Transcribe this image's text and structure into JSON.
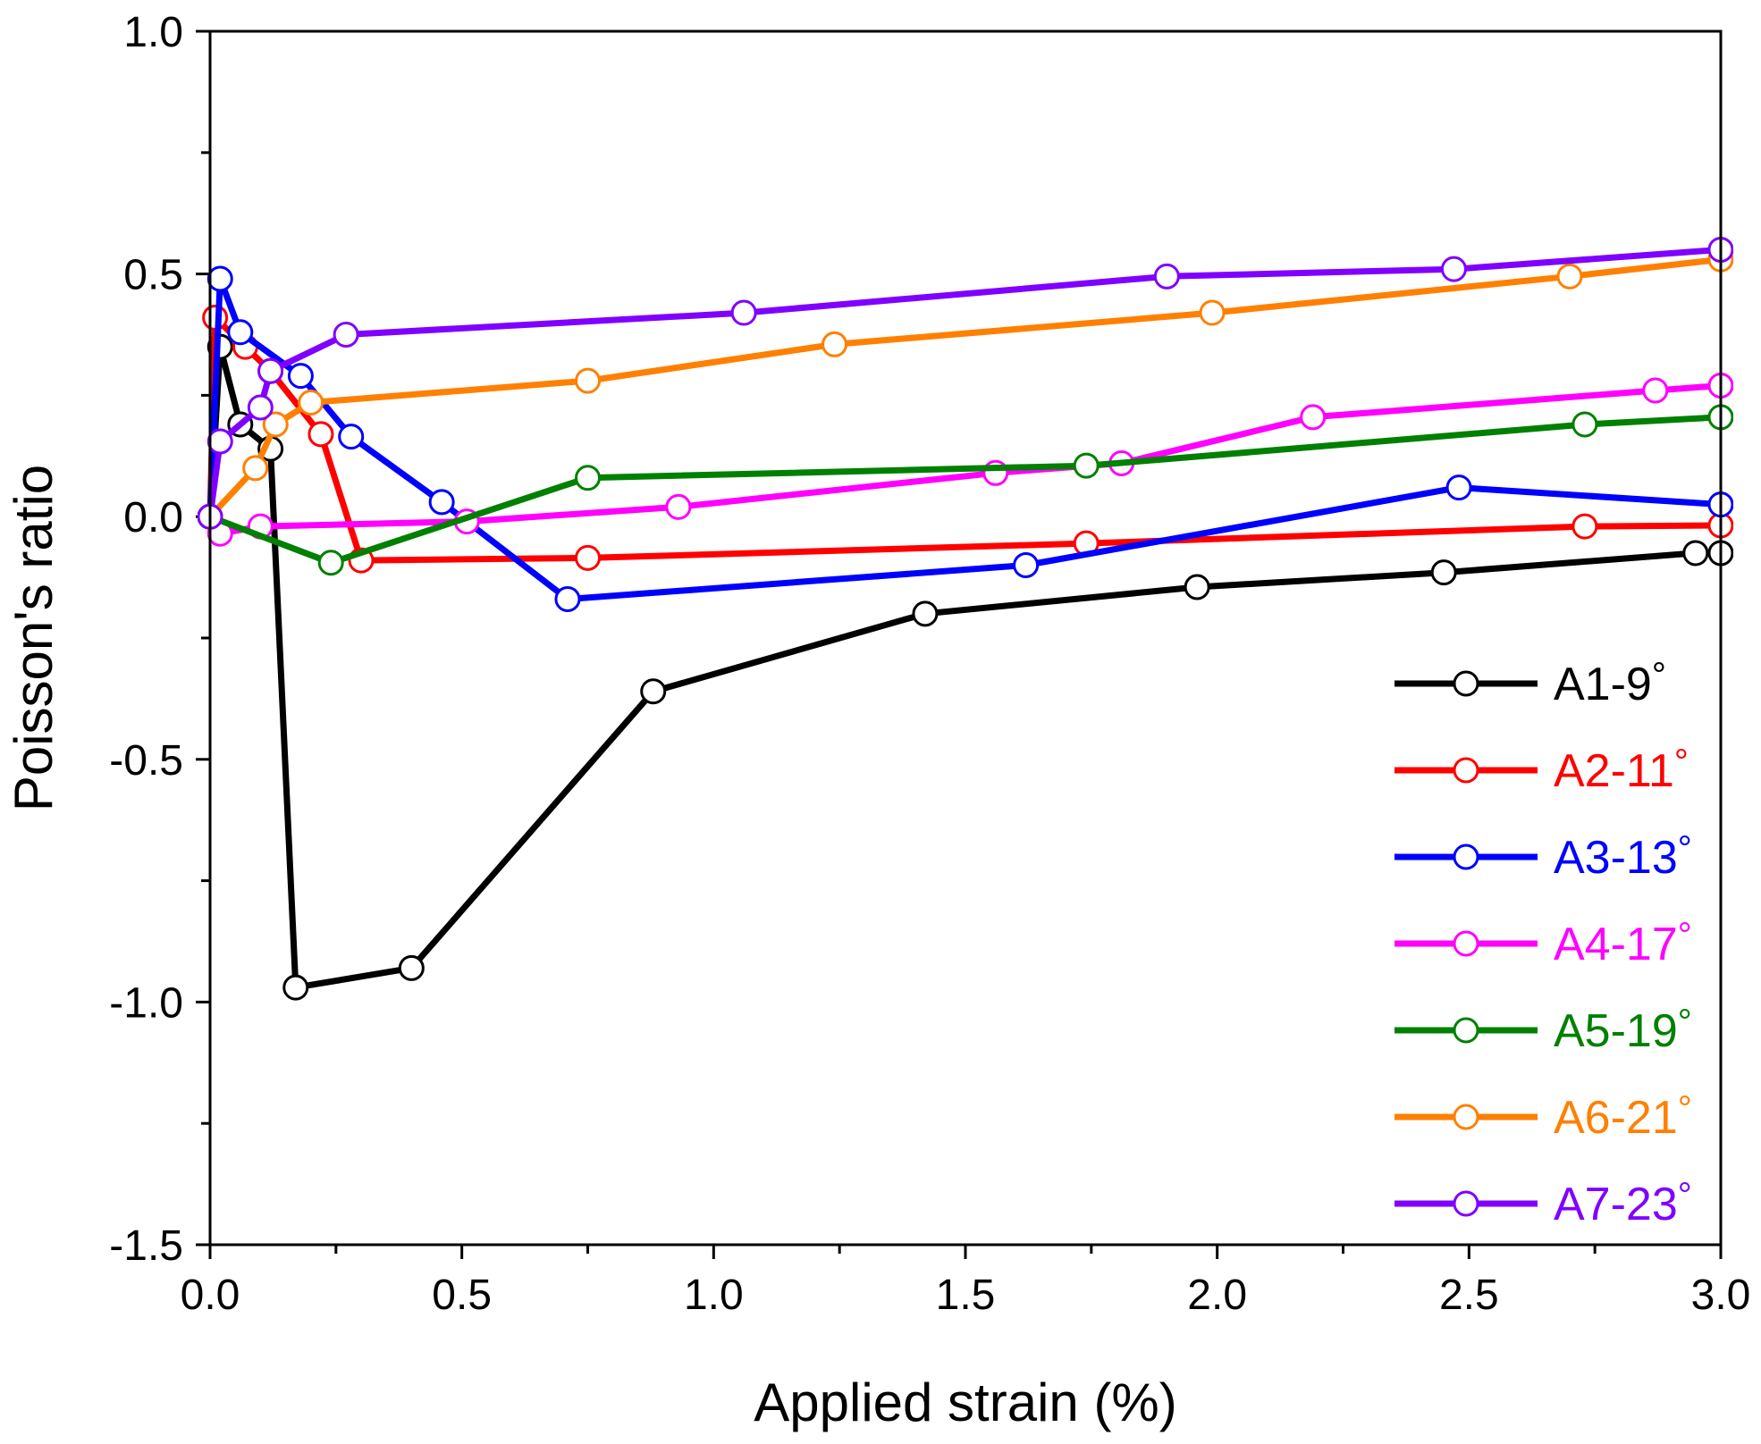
{
  "chart_data": {
    "type": "line",
    "title": "",
    "xlabel": "Applied strain (%)",
    "ylabel": "Poisson's ratio",
    "xlim": [
      0.0,
      3.0
    ],
    "ylim": [
      -1.5,
      1.0
    ],
    "x_ticks": [
      "0.0",
      "0.5",
      "1.0",
      "1.5",
      "2.0",
      "2.5",
      "3.0"
    ],
    "y_ticks": [
      "-1.5",
      "-1.0",
      "-0.5",
      "0.0",
      "0.5",
      "1.0"
    ],
    "legend_position": "bottom-right",
    "marker": "open-circle",
    "series": [
      {
        "name": "A1-9°",
        "label": "A1-9",
        "degree": "°",
        "color": "#000000",
        "x": [
          0.0,
          0.02,
          0.06,
          0.12,
          0.17,
          0.4,
          0.88,
          1.42,
          1.96,
          2.45,
          2.95,
          3.0
        ],
        "y": [
          0.0,
          0.35,
          0.19,
          0.14,
          -0.97,
          -0.93,
          -0.36,
          -0.2,
          -0.145,
          -0.115,
          -0.075,
          -0.075
        ]
      },
      {
        "name": "A2-11°",
        "label": "A2-11",
        "degree": "°",
        "color": "#ff0000",
        "x": [
          0.0,
          0.01,
          0.07,
          0.12,
          0.22,
          0.3,
          0.75,
          1.74,
          2.73,
          3.0
        ],
        "y": [
          0.0,
          0.41,
          0.35,
          0.3,
          0.17,
          -0.09,
          -0.085,
          -0.055,
          -0.02,
          -0.018
        ]
      },
      {
        "name": "A3-13°",
        "label": "A3-13",
        "degree": "°",
        "color": "#0000ff",
        "x": [
          0.0,
          0.02,
          0.06,
          0.18,
          0.28,
          0.46,
          0.71,
          1.62,
          2.48,
          3.0
        ],
        "y": [
          0.0,
          0.49,
          0.38,
          0.29,
          0.165,
          0.03,
          -0.17,
          -0.1,
          0.06,
          0.025
        ]
      },
      {
        "name": "A4-17°",
        "label": "A4-17",
        "degree": "°",
        "color": "#ff00ff",
        "x": [
          0.0,
          0.02,
          0.1,
          0.51,
          0.93,
          1.56,
          1.81,
          2.19,
          2.87,
          3.0
        ],
        "y": [
          0.0,
          -0.035,
          -0.02,
          -0.01,
          0.02,
          0.09,
          0.11,
          0.205,
          0.26,
          0.27
        ]
      },
      {
        "name": "A5-19°",
        "label": "A5-19",
        "degree": "°",
        "color": "#008000",
        "x": [
          0.0,
          0.24,
          0.75,
          1.74,
          2.73,
          3.0
        ],
        "y": [
          0.0,
          -0.095,
          0.08,
          0.105,
          0.19,
          0.205
        ]
      },
      {
        "name": "A6-21°",
        "label": "A6-21",
        "degree": "°",
        "color": "#ff8000",
        "x": [
          0.0,
          0.09,
          0.13,
          0.2,
          0.75,
          1.24,
          1.99,
          2.7,
          3.0
        ],
        "y": [
          0.0,
          0.1,
          0.19,
          0.235,
          0.28,
          0.355,
          0.42,
          0.495,
          0.53
        ]
      },
      {
        "name": "A7-23°",
        "label": "A7-23",
        "degree": "°",
        "color": "#8000ff",
        "x": [
          0.0,
          0.02,
          0.1,
          0.12,
          0.27,
          1.06,
          1.9,
          2.47,
          3.0
        ],
        "y": [
          0.0,
          0.155,
          0.225,
          0.3,
          0.375,
          0.42,
          0.495,
          0.51,
          0.55
        ]
      }
    ]
  }
}
